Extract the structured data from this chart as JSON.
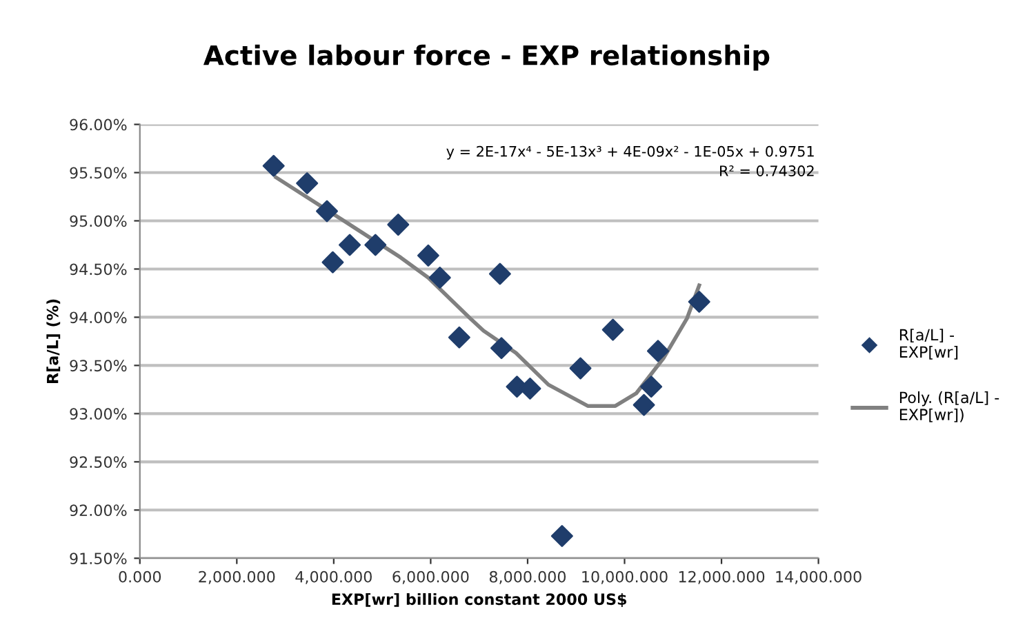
{
  "chart_data": {
    "type": "scatter",
    "title": "Active labour force - EXP relationship",
    "xlabel": "EXP[wr] billion constant 2000 US$",
    "ylabel": "R[a/L] (%)",
    "annotations": [
      "y = 2E-17x⁴ - 5E-13x³ + 4E-09x² - 1E-05x + 0.9751",
      "R² = 0.74302"
    ],
    "xlim": [
      0,
      14000
    ],
    "xticks": [
      {
        "value": 0,
        "label": "0.000"
      },
      {
        "value": 2000,
        "label": "2,000.000"
      },
      {
        "value": 4000,
        "label": "4,000.000"
      },
      {
        "value": 6000,
        "label": "6,000.000"
      },
      {
        "value": 8000,
        "label": "8,000.000"
      },
      {
        "value": 10000,
        "label": "10,000.000"
      },
      {
        "value": 12000,
        "label": "12,000.000"
      },
      {
        "value": 14000,
        "label": "14,000.000"
      }
    ],
    "ylim": [
      91.5,
      96
    ],
    "yticks": [
      {
        "value": 91.5,
        "label": "91.50%"
      },
      {
        "value": 92,
        "label": "92.00%"
      },
      {
        "value": 92.5,
        "label": "92.50%"
      },
      {
        "value": 93,
        "label": "93.00%"
      },
      {
        "value": 93.5,
        "label": "93.50%"
      },
      {
        "value": 94,
        "label": "94.00%"
      },
      {
        "value": 94.5,
        "label": "94.50%"
      },
      {
        "value": 95,
        "label": "95.00%"
      },
      {
        "value": 95.5,
        "label": "95.50%"
      },
      {
        "value": 96,
        "label": "96.00%"
      }
    ],
    "grid": "y",
    "legend": "right",
    "series": [
      {
        "name": "R[a/L] -\nEXP[wr]",
        "marker": "diamond",
        "color": "#1f3d6b",
        "x": [
          2760,
          3450,
          3860,
          3980,
          4330,
          4860,
          5330,
          5950,
          6190,
          6590,
          7430,
          7460,
          7780,
          8050,
          8710,
          9090,
          9760,
          10400,
          10550,
          10690,
          11540
        ],
        "values": [
          95.57,
          95.39,
          95.1,
          94.57,
          94.75,
          94.75,
          94.96,
          94.64,
          94.41,
          93.79,
          94.45,
          93.68,
          93.28,
          93.26,
          91.73,
          93.47,
          93.87,
          93.09,
          93.28,
          93.65,
          94.16
        ]
      },
      {
        "name": "Poly. (R[a/L] -\nEXP[wr])",
        "type": "line",
        "marker": "none",
        "line_style": "solid",
        "color": "#808080",
        "x": [
          2810,
          4240,
          5380,
          5950,
          6810,
          7090,
          7760,
          8430,
          9240,
          9810,
          10240,
          10810,
          11290,
          11540
        ],
        "values": [
          95.45,
          94.99,
          94.62,
          94.41,
          93.99,
          93.86,
          93.63,
          93.3,
          93.08,
          93.08,
          93.21,
          93.58,
          93.99,
          94.33
        ]
      }
    ]
  }
}
